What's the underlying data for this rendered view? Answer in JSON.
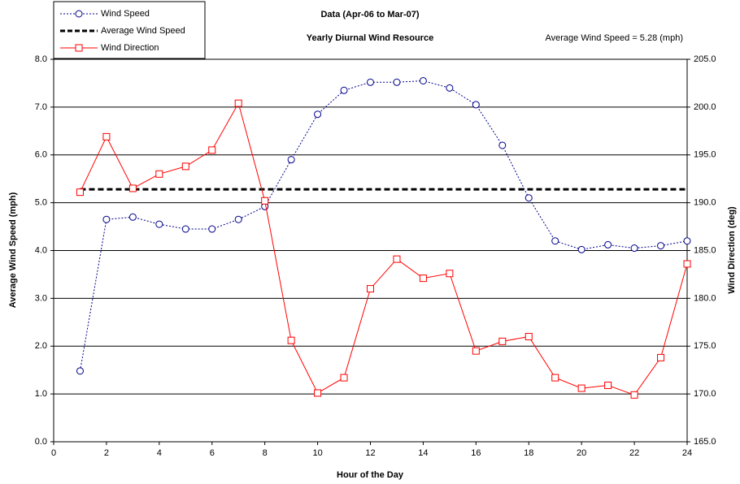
{
  "chart_data": {
    "type": "line",
    "title": "Data (Apr-06 to Mar-07)",
    "subtitle": "Yearly Diurnal Wind Resource",
    "annotation": "Average Wind Speed = 5.28 (mph)",
    "x_label": "Hour of the Day",
    "y_label": "Average Wind Speed (mph)",
    "y2_label": "Wind Direction (deg)",
    "x": [
      1,
      2,
      3,
      4,
      5,
      6,
      7,
      8,
      9,
      10,
      11,
      12,
      13,
      14,
      15,
      16,
      17,
      18,
      19,
      20,
      21,
      22,
      23,
      24
    ],
    "series": [
      {
        "name": "Wind Speed",
        "color": "#00008b",
        "marker": "circle",
        "dash": "dotted",
        "values": [
          1.48,
          4.65,
          4.7,
          4.55,
          4.45,
          4.45,
          4.65,
          4.92,
          5.9,
          6.85,
          7.35,
          7.52,
          7.52,
          7.55,
          7.4,
          7.05,
          6.2,
          5.1,
          4.2,
          4.02,
          4.12,
          4.05,
          4.1,
          4.2
        ]
      },
      {
        "name": "Wind Direction",
        "color": "#ff0000",
        "marker": "square",
        "axis": "y2",
        "values": [
          191.1,
          196.9,
          191.5,
          193.0,
          193.8,
          195.5,
          200.4,
          190.2,
          175.6,
          170.1,
          171.7,
          181.0,
          184.1,
          182.1,
          182.6,
          174.5,
          175.5,
          176.0,
          171.7,
          170.6,
          170.9,
          169.9,
          173.8,
          183.6
        ]
      }
    ],
    "reference_line": {
      "name": "Average Wind Speed",
      "color": "#000000",
      "value": 5.28,
      "x": [
        1,
        24
      ]
    },
    "xlim": [
      0,
      24
    ],
    "xticks": [
      0,
      2,
      4,
      6,
      8,
      10,
      12,
      14,
      16,
      18,
      20,
      22,
      24
    ],
    "ylim": [
      0,
      8
    ],
    "yticks": [
      {
        "value": 0,
        "label": "0.0"
      },
      {
        "value": 1,
        "label": "1.0"
      },
      {
        "value": 2,
        "label": "2.0"
      },
      {
        "value": 3,
        "label": "3.0"
      },
      {
        "value": 4,
        "label": "4.0"
      },
      {
        "value": 5,
        "label": "5.0"
      },
      {
        "value": 6,
        "label": "6.0"
      },
      {
        "value": 7,
        "label": "7.0"
      },
      {
        "value": 8,
        "label": "8.0"
      }
    ],
    "y2lim": [
      165,
      205
    ],
    "y2ticks": [
      {
        "value": 165,
        "label": "165.0"
      },
      {
        "value": 170,
        "label": "170.0"
      },
      {
        "value": 175,
        "label": "175.0"
      },
      {
        "value": 180,
        "label": "180.0"
      },
      {
        "value": 185,
        "label": "185.0"
      },
      {
        "value": 190,
        "label": "190.0"
      },
      {
        "value": 195,
        "label": "195.0"
      },
      {
        "value": 200,
        "label": "200.0"
      },
      {
        "value": 205,
        "label": "205.0"
      }
    ],
    "grid": true,
    "legend": "top-left"
  }
}
